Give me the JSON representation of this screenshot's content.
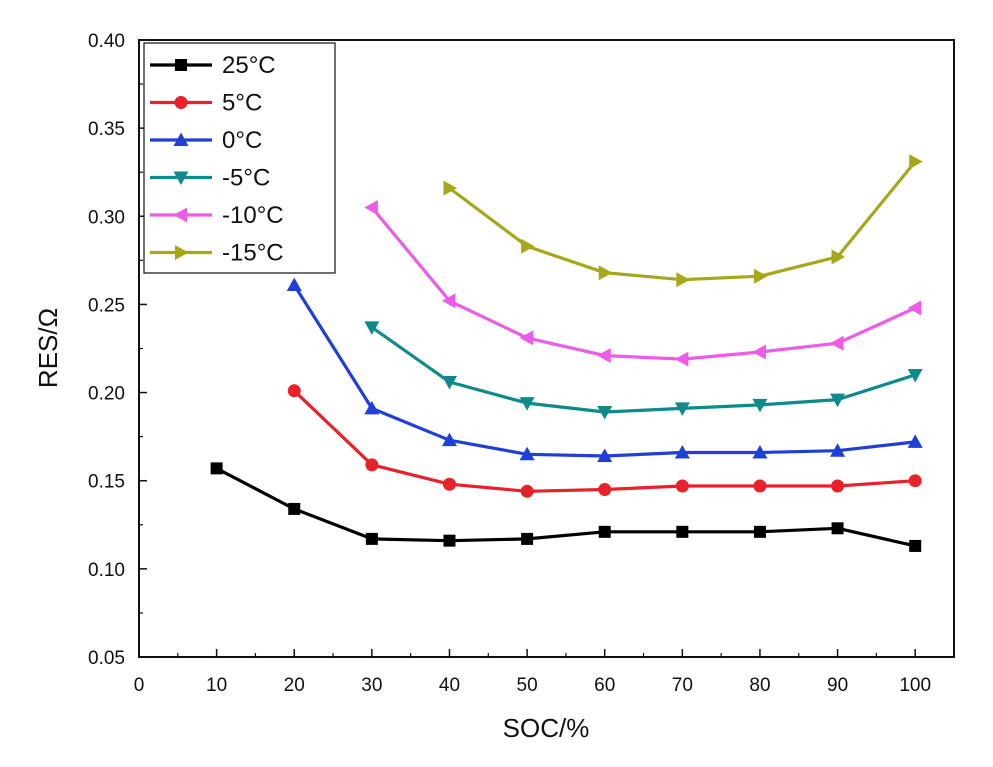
{
  "chart_data": {
    "type": "line",
    "xlabel": "SOC/%",
    "ylabel": "RES/Ω",
    "xlim": [
      0,
      105
    ],
    "ylim": [
      0.05,
      0.4
    ],
    "xticks": [
      "0",
      "10",
      "20",
      "30",
      "40",
      "50",
      "60",
      "70",
      "80",
      "90",
      "100"
    ],
    "yticks": [
      "0.05",
      "0.10",
      "0.15",
      "0.20",
      "0.25",
      "0.30",
      "0.35",
      "0.40"
    ],
    "grid": false,
    "legend_position": "top-left",
    "series": [
      {
        "name": "25°C",
        "color": "#000000",
        "marker": "square",
        "x": [
          10,
          20,
          30,
          40,
          50,
          60,
          70,
          80,
          90,
          100
        ],
        "y": [
          0.157,
          0.134,
          0.117,
          0.116,
          0.117,
          0.121,
          0.121,
          0.121,
          0.123,
          0.113
        ]
      },
      {
        "name": "5°C",
        "color": "#e8212b",
        "marker": "circle",
        "x": [
          20,
          30,
          40,
          50,
          60,
          70,
          80,
          90,
          100
        ],
        "y": [
          0.201,
          0.159,
          0.148,
          0.144,
          0.145,
          0.147,
          0.147,
          0.147,
          0.15
        ]
      },
      {
        "name": "0°C",
        "color": "#1f3fd6",
        "marker": "triangle-up",
        "x": [
          20,
          30,
          40,
          50,
          60,
          70,
          80,
          90,
          100
        ],
        "y": [
          0.261,
          0.191,
          0.173,
          0.165,
          0.164,
          0.166,
          0.166,
          0.167,
          0.172
        ]
      },
      {
        "name": "-5°C",
        "color": "#0e8a8a",
        "marker": "triangle-down",
        "x": [
          30,
          40,
          50,
          60,
          70,
          80,
          90,
          100
        ],
        "y": [
          0.237,
          0.206,
          0.194,
          0.189,
          0.191,
          0.193,
          0.196,
          0.21
        ]
      },
      {
        "name": "-10°C",
        "color": "#ee5be8",
        "marker": "triangle-left",
        "x": [
          30,
          40,
          50,
          60,
          70,
          80,
          90,
          100
        ],
        "y": [
          0.305,
          0.252,
          0.231,
          0.221,
          0.219,
          0.223,
          0.228,
          0.248
        ]
      },
      {
        "name": "-15°C",
        "color": "#a6a81a",
        "marker": "triangle-right",
        "x": [
          40,
          50,
          60,
          70,
          80,
          90,
          100
        ],
        "y": [
          0.316,
          0.283,
          0.268,
          0.264,
          0.266,
          0.277,
          0.331
        ]
      }
    ]
  }
}
